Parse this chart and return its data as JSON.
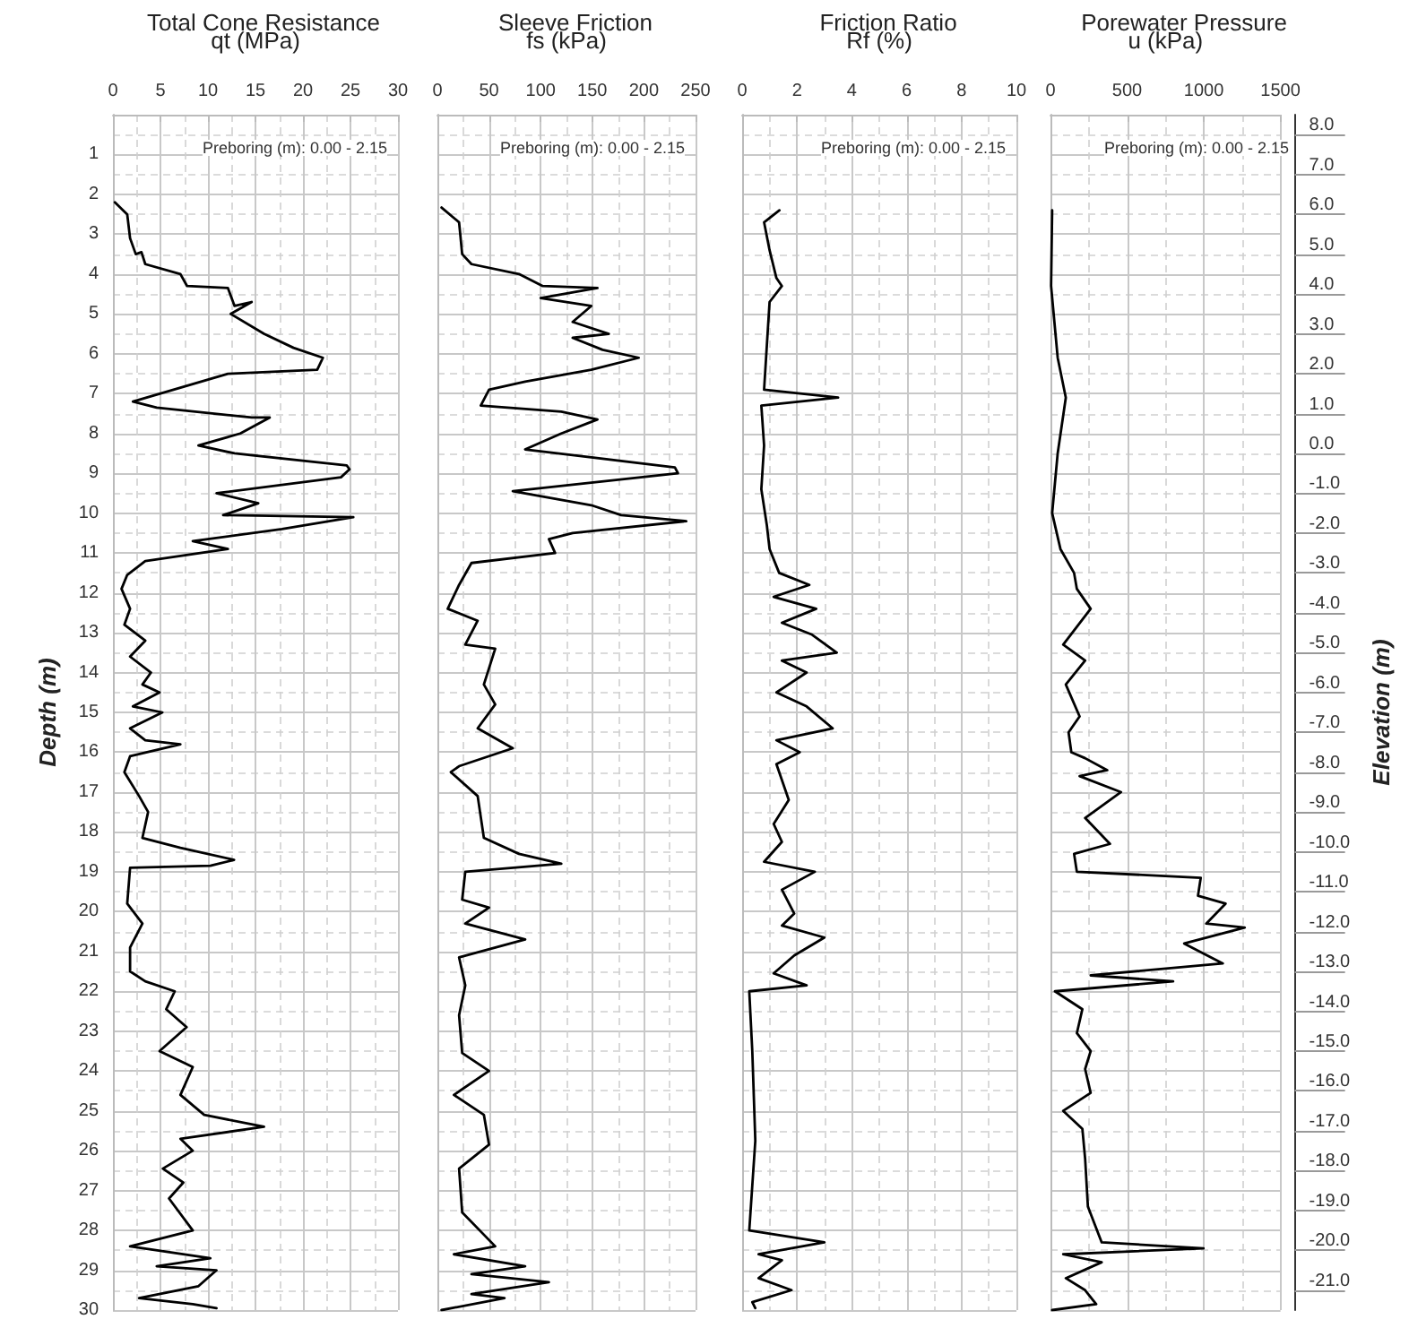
{
  "chart_data": [
    {
      "type": "line",
      "title": "Total Cone Resistance",
      "xlabel": "qt (MPa)",
      "ylabel": "Depth (m)",
      "annotations": [
        "Preboring (m): 0.00 - 2.15"
      ],
      "xlim": [
        0,
        30
      ],
      "xticks": [
        0,
        5,
        10,
        15,
        20,
        25,
        30
      ],
      "ylim": [
        30,
        0
      ],
      "yticks": [
        1,
        2,
        3,
        4,
        5,
        6,
        7,
        8,
        9,
        10,
        11,
        12,
        13,
        14,
        15,
        16,
        17,
        18,
        19,
        20,
        21,
        22,
        23,
        24,
        25,
        26,
        27,
        28,
        29,
        30
      ],
      "grid": true,
      "marker": "none",
      "series": [
        {
          "color": "#000000",
          "x": [
            0.2,
            1.5,
            1.8,
            2.4,
            3.0,
            3.4,
            7.1,
            7.8,
            12.1,
            12.8,
            14.6,
            12.4,
            15.9,
            19,
            22.1,
            21.5,
            12.1,
            2.1,
            4.6,
            14.6,
            16.5,
            13.4,
            9,
            12.8,
            24.6,
            24.9,
            24,
            10.9,
            15.3,
            11.6,
            25.3,
            17.8,
            8.4,
            12.1,
            3.4,
            1.5,
            0.9,
            1.8,
            1.2,
            3.4,
            1.8,
            4.0,
            3.1,
            4.9,
            2.1,
            5.2,
            1.8,
            3.4,
            7.1,
            1.8,
            1.2,
            2.75,
            3.7,
            3.1,
            7.1,
            12.75,
            10.25,
            1.8,
            1.5,
            3.1,
            1.8,
            1.8,
            3.4,
            6.5,
            5.6,
            7.75,
            4.9,
            8.4,
            7.1,
            9.6,
            15.9,
            7.1,
            8.4,
            5.25,
            7.4,
            5.9,
            8.4,
            1.8,
            10.25,
            4.6,
            10.9,
            9,
            2.75,
            8.4,
            10.9
          ],
          "values": [
            2.2,
            2.5,
            3.1,
            3.5,
            3.45,
            3.75,
            4.0,
            4.3,
            4.35,
            4.8,
            4.7,
            5.0,
            5.5,
            5.85,
            6.1,
            6.4,
            6.5,
            7.2,
            7.35,
            7.6,
            7.6,
            8.0,
            8.3,
            8.5,
            8.8,
            8.9,
            9.1,
            9.5,
            9.75,
            10.05,
            10.1,
            10.4,
            10.7,
            10.9,
            11.2,
            11.55,
            11.9,
            12.4,
            12.8,
            13.2,
            13.6,
            14.0,
            14.3,
            14.5,
            14.85,
            15.0,
            15.4,
            15.7,
            15.8,
            16.1,
            16.5,
            17.1,
            17.5,
            18.15,
            18.4,
            18.7,
            18.85,
            18.9,
            19.8,
            20.3,
            20.9,
            21.5,
            21.75,
            22.0,
            22.45,
            22.9,
            23.5,
            23.9,
            24.6,
            25.1,
            25.4,
            25.7,
            26.0,
            26.45,
            26.8,
            27.2,
            28.0,
            28.4,
            28.7,
            28.9,
            29.0,
            29.4,
            29.7,
            29.85,
            29.95
          ]
        }
      ]
    },
    {
      "type": "line",
      "title": "Sleeve Friction",
      "xlabel": "fs (kPa)",
      "annotations": [
        "Preboring (m): 0.00 - 2.15"
      ],
      "xlim": [
        0,
        250
      ],
      "xticks": [
        0,
        50,
        100,
        150,
        200,
        250
      ],
      "ylim": [
        30,
        0
      ],
      "yticks": [
        1,
        2,
        3,
        4,
        5,
        6,
        7,
        8,
        9,
        10,
        11,
        12,
        13,
        14,
        15,
        16,
        17,
        18,
        19,
        20,
        21,
        22,
        23,
        24,
        25,
        26,
        27,
        28,
        29,
        30
      ],
      "grid": true,
      "marker": "none",
      "tick_labels": "x",
      "series": [
        {
          "color": "#000000",
          "x": [
            4,
            21,
            24,
            33,
            79,
            102,
            155,
            100,
            149,
            131,
            166,
            131,
            160,
            195,
            149,
            85,
            50,
            42,
            120,
            155,
            120,
            85,
            230,
            233,
            73,
            149,
            178,
            241,
            131,
            108,
            114,
            33,
            21,
            10,
            39,
            27,
            56,
            45,
            56,
            39,
            73,
            21,
            13,
            39,
            45,
            79,
            120,
            27,
            24,
            50,
            27,
            85,
            21,
            27,
            21,
            24,
            50,
            16,
            45,
            50,
            21,
            24,
            56,
            16,
            85,
            33,
            108,
            33,
            65,
            4
          ],
          "values": [
            2.33,
            2.7,
            3.5,
            3.75,
            4.0,
            4.3,
            4.35,
            4.6,
            4.8,
            5.2,
            5.5,
            5.6,
            5.9,
            6.1,
            6.4,
            6.7,
            6.9,
            7.3,
            7.45,
            7.65,
            8.0,
            8.4,
            8.85,
            9.0,
            9.45,
            9.8,
            10.05,
            10.2,
            10.5,
            10.65,
            11.0,
            11.25,
            11.8,
            12.4,
            12.7,
            13.3,
            13.4,
            14.3,
            14.8,
            15.4,
            15.9,
            16.35,
            16.5,
            17.1,
            18.15,
            18.55,
            18.8,
            19.0,
            19.7,
            19.9,
            20.3,
            20.7,
            21.15,
            21.85,
            22.6,
            23.55,
            24.0,
            24.6,
            25.1,
            25.85,
            26.45,
            27.55,
            28.4,
            28.6,
            28.9,
            29.1,
            29.3,
            29.6,
            29.7,
            30.0
          ]
        }
      ]
    },
    {
      "type": "line",
      "title": "Friction Ratio",
      "xlabel": "Rf (%)",
      "annotations": [
        "Preboring (m): 0.00 - 2.15"
      ],
      "xlim": [
        0,
        10
      ],
      "xticks": [
        0,
        2,
        4,
        6,
        8,
        10
      ],
      "ylim": [
        30,
        0
      ],
      "yticks": [
        1,
        2,
        3,
        4,
        5,
        6,
        7,
        8,
        9,
        10,
        11,
        12,
        13,
        14,
        15,
        16,
        17,
        18,
        19,
        20,
        21,
        22,
        23,
        24,
        25,
        26,
        27,
        28,
        29,
        30
      ],
      "grid": true,
      "marker": "none",
      "tick_labels": "x",
      "series": [
        {
          "color": "#000000",
          "x": [
            1.36,
            0.8,
            1.0,
            1.25,
            1.45,
            1.0,
            0.9,
            0.8,
            3.5,
            0.7,
            0.8,
            0.7,
            0.9,
            1.0,
            1.35,
            2.45,
            1.15,
            2.7,
            1.45,
            2.55,
            3.45,
            1.45,
            2.35,
            1.25,
            2.35,
            3.3,
            1.25,
            2.1,
            1.25,
            1.7,
            1.15,
            1.45,
            0.8,
            2.65,
            1.45,
            1.9,
            1.45,
            3.0,
            1.9,
            1.15,
            2.35,
            0.26,
            0.37,
            0.48,
            0.26,
            3.0,
            0.6,
            1.45,
            0.6,
            1.8,
            0.37,
            0.48
          ],
          "values": [
            2.4,
            2.7,
            3.4,
            4.1,
            4.3,
            4.7,
            5.8,
            6.9,
            7.1,
            7.3,
            8.3,
            9.4,
            10.3,
            10.9,
            11.5,
            11.8,
            12.1,
            12.4,
            12.75,
            13.05,
            13.5,
            13.7,
            14.0,
            14.5,
            14.85,
            15.4,
            15.7,
            16.0,
            16.3,
            17.2,
            17.8,
            18.25,
            18.75,
            19.0,
            19.45,
            20.05,
            20.35,
            20.65,
            21.1,
            21.55,
            21.85,
            22.0,
            23.5,
            25.75,
            28.0,
            28.3,
            28.6,
            28.75,
            29.2,
            29.5,
            29.8,
            29.95
          ]
        }
      ]
    },
    {
      "type": "line",
      "title": "Porewater Pressure",
      "xlabel": "u (kPa)",
      "y2label": "Elevation (m)",
      "annotations": [
        "Preboring (m): 0.00 - 2.15"
      ],
      "xlim": [
        0,
        1500
      ],
      "xticks": [
        0,
        500,
        1000,
        1500
      ],
      "ylim": [
        30,
        0
      ],
      "yticks": [
        1,
        2,
        3,
        4,
        5,
        6,
        7,
        8,
        9,
        10,
        11,
        12,
        13,
        14,
        15,
        16,
        17,
        18,
        19,
        20,
        21,
        22,
        23,
        24,
        25,
        26,
        27,
        28,
        29,
        30
      ],
      "y2lim": [
        -21.5,
        8.5
      ],
      "y2ticks": [
        {
          "value": 8,
          "label": "8.0"
        },
        {
          "value": 7,
          "label": "7.0"
        },
        {
          "value": 6,
          "label": "6.0"
        },
        {
          "value": 5,
          "label": "5.0"
        },
        {
          "value": 4,
          "label": "4.0"
        },
        {
          "value": 3,
          "label": "3.0"
        },
        {
          "value": 2,
          "label": "2.0"
        },
        {
          "value": 1,
          "label": "1.0"
        },
        {
          "value": 0,
          "label": "0.0"
        },
        {
          "value": -1,
          "label": "-1.0"
        },
        {
          "value": -2,
          "label": "-2.0"
        },
        {
          "value": -3,
          "label": "-3.0"
        },
        {
          "value": -4,
          "label": "-4.0"
        },
        {
          "value": -5,
          "label": "-5.0"
        },
        {
          "value": -6,
          "label": "-6.0"
        },
        {
          "value": -7,
          "label": "-7.0"
        },
        {
          "value": -8,
          "label": "-8.0"
        },
        {
          "value": -9,
          "label": "-9.0"
        },
        {
          "value": -10,
          "label": "-10.0"
        },
        {
          "value": -11,
          "label": "-11.0"
        },
        {
          "value": -12,
          "label": "-12.0"
        },
        {
          "value": -13,
          "label": "-13.0"
        },
        {
          "value": -14,
          "label": "-14.0"
        },
        {
          "value": -15,
          "label": "-15.0"
        },
        {
          "value": -16,
          "label": "-16.0"
        },
        {
          "value": -17,
          "label": "-17.0"
        },
        {
          "value": -18,
          "label": "-18.0"
        },
        {
          "value": -19,
          "label": "-19.0"
        },
        {
          "value": -20,
          "label": "-20.0"
        },
        {
          "value": -21,
          "label": "-21.0"
        }
      ],
      "grid": true,
      "marker": "none",
      "tick_labels": "x",
      "series": [
        {
          "color": "#000000",
          "x": [
            11,
            4,
            47,
            100,
            47,
            11,
            65,
            154,
            172,
            262,
            83,
            226,
            100,
            190,
            118,
            136,
            226,
            370,
            190,
            460,
            226,
            388,
            154,
            172,
            980,
            962,
            1142,
            1016,
            1267,
            872,
            1124,
            262,
            800,
            29,
            208,
            172,
            262,
            226,
            262,
            83,
            208,
            226,
            244,
            334,
            998,
            83,
            334,
            100,
            226,
            298,
            11
          ],
          "values": [
            2.4,
            4.3,
            6.1,
            7.1,
            8.5,
            10.0,
            10.9,
            11.5,
            11.9,
            12.4,
            13.3,
            13.7,
            14.3,
            15.1,
            15.5,
            16.0,
            16.15,
            16.45,
            16.6,
            17.0,
            17.65,
            18.3,
            18.55,
            19.0,
            19.15,
            19.6,
            19.8,
            20.3,
            20.4,
            20.8,
            21.3,
            21.6,
            21.75,
            22.0,
            22.45,
            23.05,
            23.5,
            23.95,
            24.55,
            25.0,
            25.45,
            26.2,
            27.4,
            28.3,
            28.45,
            28.6,
            28.8,
            29.2,
            29.5,
            29.85,
            30.0
          ]
        }
      ]
    }
  ]
}
